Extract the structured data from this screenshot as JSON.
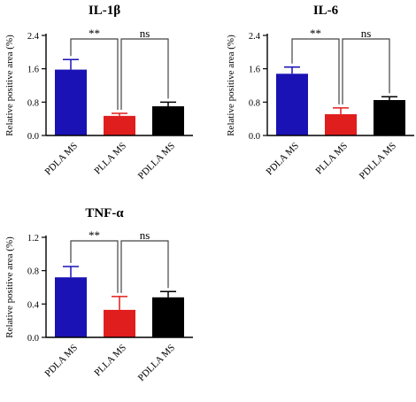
{
  "chart_data": [
    {
      "type": "bar",
      "title": "IL-1β",
      "ylabel": "Relative positive area (%)",
      "ylim": [
        0,
        2.4
      ],
      "yticks": [
        "0.0",
        "0.8",
        "1.6",
        "2.4"
      ],
      "categories": [
        "PDLA MS",
        "PLLA MS",
        "PDLLA MS"
      ],
      "values": [
        1.58,
        0.47,
        0.7
      ],
      "errors": [
        0.24,
        0.06,
        0.1
      ],
      "colors": [
        "#1a12b4",
        "#e01e1e",
        "#000000"
      ],
      "significance": [
        {
          "from": 0,
          "to": 1,
          "label": "**"
        },
        {
          "from": 1,
          "to": 2,
          "label": "ns"
        }
      ]
    },
    {
      "type": "bar",
      "title": "IL-6",
      "ylabel": "Relative positive area (%)",
      "ylim": [
        0,
        2.4
      ],
      "yticks": [
        "0.0",
        "0.8",
        "1.6",
        "2.4"
      ],
      "categories": [
        "PDLA MS",
        "PLLA MS",
        "PDLLA MS"
      ],
      "values": [
        1.48,
        0.51,
        0.85
      ],
      "errors": [
        0.16,
        0.15,
        0.08
      ],
      "colors": [
        "#1a12b4",
        "#e01e1e",
        "#000000"
      ],
      "significance": [
        {
          "from": 0,
          "to": 1,
          "label": "**"
        },
        {
          "from": 1,
          "to": 2,
          "label": "ns"
        }
      ]
    },
    {
      "type": "bar",
      "title": "TNF-α",
      "ylabel": "Relative positive area (%)",
      "ylim": [
        0,
        1.2
      ],
      "yticks": [
        "0.0",
        "0.4",
        "0.8",
        "1.2"
      ],
      "categories": [
        "PDLA MS",
        "PLLA MS",
        "PDLLA MS"
      ],
      "values": [
        0.72,
        0.33,
        0.48
      ],
      "errors": [
        0.13,
        0.16,
        0.07
      ],
      "colors": [
        "#1a12b4",
        "#e01e1e",
        "#000000"
      ],
      "significance": [
        {
          "from": 0,
          "to": 1,
          "label": "**"
        },
        {
          "from": 1,
          "to": 2,
          "label": "ns"
        }
      ]
    }
  ]
}
